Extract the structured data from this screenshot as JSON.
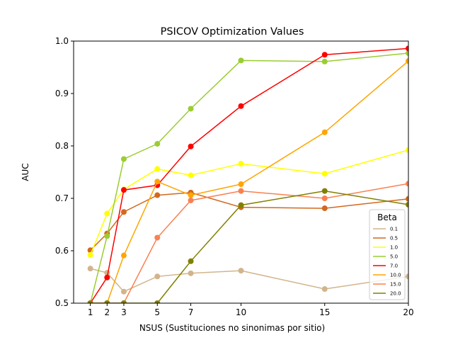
{
  "chart_data": {
    "type": "line",
    "title": "PSICOV Optimization Values",
    "xlabel": "NSUS (Sustituciones no sinonimas por sitio)",
    "ylabel": "AUC",
    "xlim": [
      0,
      20
    ],
    "ylim": [
      0.5,
      1.0
    ],
    "x": [
      1,
      2,
      3,
      5,
      7,
      10,
      15,
      20
    ],
    "x_ticks": [
      "1",
      "2",
      "3",
      "5",
      "7",
      "10",
      "15",
      "20"
    ],
    "y_ticks": [
      "0.5",
      "0.6",
      "0.7",
      "0.8",
      "0.9",
      "1.0"
    ],
    "y_tick_values": [
      0.5,
      0.6,
      0.7,
      0.8,
      0.9,
      1.0
    ],
    "grid": false,
    "legend_title": "Beta",
    "legend_position": "lower-right",
    "series": [
      {
        "name": "0.1",
        "color": "#d2b48c",
        "values": [
          0.566,
          0.558,
          0.522,
          0.551,
          0.557,
          0.562,
          0.527,
          0.551
        ]
      },
      {
        "name": "0.5",
        "color": "#d2691e",
        "values": [
          0.601,
          0.633,
          0.674,
          0.706,
          0.711,
          0.683,
          0.681,
          0.699
        ]
      },
      {
        "name": "1.0",
        "color": "#ffff00",
        "values": [
          0.592,
          0.671,
          0.717,
          0.756,
          0.744,
          0.766,
          0.747,
          0.792
        ]
      },
      {
        "name": "5.0",
        "color": "#9acd32",
        "values": [
          0.5,
          0.628,
          0.775,
          0.804,
          0.871,
          0.963,
          0.961,
          0.977
        ]
      },
      {
        "name": "7.0",
        "color": "#ff0000",
        "values": [
          0.5,
          0.549,
          0.716,
          0.725,
          0.799,
          0.876,
          0.974,
          0.986
        ]
      },
      {
        "name": "10.0",
        "color": "#ffa500",
        "values": [
          0.5,
          0.5,
          0.591,
          0.732,
          0.706,
          0.727,
          0.826,
          0.962
        ]
      },
      {
        "name": "15.0",
        "color": "#fa8050",
        "values": [
          0.5,
          0.5,
          0.5,
          0.625,
          0.696,
          0.714,
          0.7,
          0.728
        ]
      },
      {
        "name": "20.0",
        "color": "#808000",
        "values": [
          0.5,
          0.5,
          0.5,
          0.5,
          0.58,
          0.687,
          0.714,
          0.688
        ]
      }
    ]
  }
}
